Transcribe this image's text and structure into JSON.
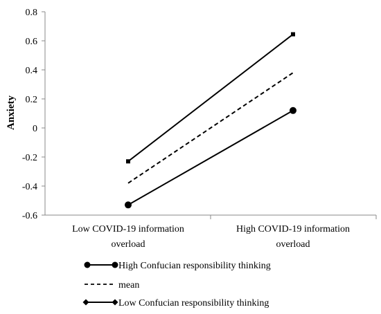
{
  "chart_data": {
    "type": "line",
    "ylabel": "Anxiety",
    "xlabel": "",
    "ylim": [
      -0.6,
      0.8
    ],
    "yticks": [
      "0.8",
      "0.6",
      "0.4",
      "0.2",
      "0",
      "-0.2",
      "-0.4",
      "-0.6"
    ],
    "yticks_values": [
      0.8,
      0.6,
      0.4,
      0.2,
      0,
      -0.2,
      -0.4,
      -0.6
    ],
    "categories": [
      [
        "Low COVID-19 information",
        "overload"
      ],
      [
        "High COVID-19 information",
        "overload"
      ]
    ],
    "grid": false,
    "legend_position": "bottom",
    "series": [
      {
        "name": "High Confucian responsibility thinking",
        "values": [
          -0.53,
          0.12
        ],
        "line": "solid",
        "marker": "circle"
      },
      {
        "name": "mean",
        "values": [
          -0.38,
          0.38
        ],
        "line": "dashed",
        "marker": "none"
      },
      {
        "name": "Low Confucian responsibility thinking",
        "values": [
          -0.23,
          0.645
        ],
        "line": "solid",
        "marker": "square"
      }
    ]
  }
}
